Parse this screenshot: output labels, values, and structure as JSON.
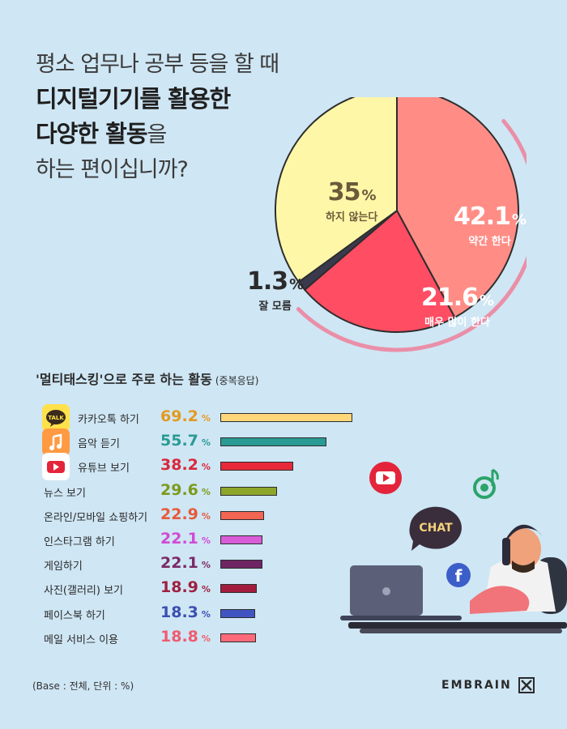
{
  "title": {
    "line1": "평소 업무나 공부 등을 할 때",
    "line2": "디지털기기를 활용한",
    "line3_bold": "다양한 활동",
    "line3_suffix": "을",
    "line4": "하는 편이십니까?"
  },
  "section_title": "'멀티태스킹'으로 주로 하는 활동",
  "section_sub": "(중복응답)",
  "base_note": "(Base : 전체, 단위 : %)",
  "brand": "EMBRAIN",
  "illustration": {
    "chat_label": "CHAT"
  },
  "colors": {
    "background": "#cfe6f4",
    "pie_yellow": "#fff7a8",
    "pie_salmon": "#ff8d86",
    "pie_red": "#ff4d63",
    "pie_dark": "#3a3a4e",
    "ring": "#ea8fa8"
  },
  "chart_data": [
    {
      "type": "pie",
      "unit": "%",
      "slices": [
        {
          "label": "약간 한다",
          "value": 42.1,
          "value_text": "42.1",
          "color": "#ff8d86"
        },
        {
          "label": "매우 많이 한다",
          "value": 21.6,
          "value_text": "21.6",
          "color": "#ff4d63"
        },
        {
          "label": "잘 모름",
          "value": 1.3,
          "value_text": "1.3",
          "color": "#3a3a4e"
        },
        {
          "label": "하지 않는다",
          "value": 35,
          "value_text": "35",
          "color": "#fff7a8"
        }
      ]
    },
    {
      "type": "bar",
      "title": "'멀티태스킹'으로 주로 하는 활동",
      "unit": "%",
      "categories": [
        "카카오톡 하기",
        "음악 듣기",
        "유튜브 보기",
        "뉴스 보기",
        "온라인/모바일 쇼핑하기",
        "인스타그램 하기",
        "게임하기",
        "사진(갤러리) 보기",
        "페이스북 하기",
        "메일 서비스 이용"
      ],
      "values": [
        69.2,
        55.7,
        38.2,
        29.6,
        22.9,
        22.1,
        22.1,
        18.9,
        18.3,
        18.8
      ],
      "value_texts": [
        "69.2",
        "55.7",
        "38.2",
        "29.6",
        "22.9",
        "22.1",
        "22.1",
        "18.9",
        "18.3",
        "18.8"
      ],
      "value_colors": [
        "#e39a1f",
        "#2a9a94",
        "#d9283a",
        "#7c9a1d",
        "#e65a3c",
        "#d04bd4",
        "#7a2a66",
        "#9e2040",
        "#3b4fb0",
        "#ef5b70"
      ],
      "bar_colors": [
        "#ffd77a",
        "#2a9a94",
        "#e8293a",
        "#8ea62a",
        "#f26552",
        "#d85cd8",
        "#6e2563",
        "#a21d3d",
        "#4055c2",
        "#ff6b7a"
      ],
      "icons": [
        "kakaotalk-icon",
        "music-icon",
        "youtube-icon",
        "",
        "",
        "",
        "",
        "",
        "",
        ""
      ]
    }
  ]
}
